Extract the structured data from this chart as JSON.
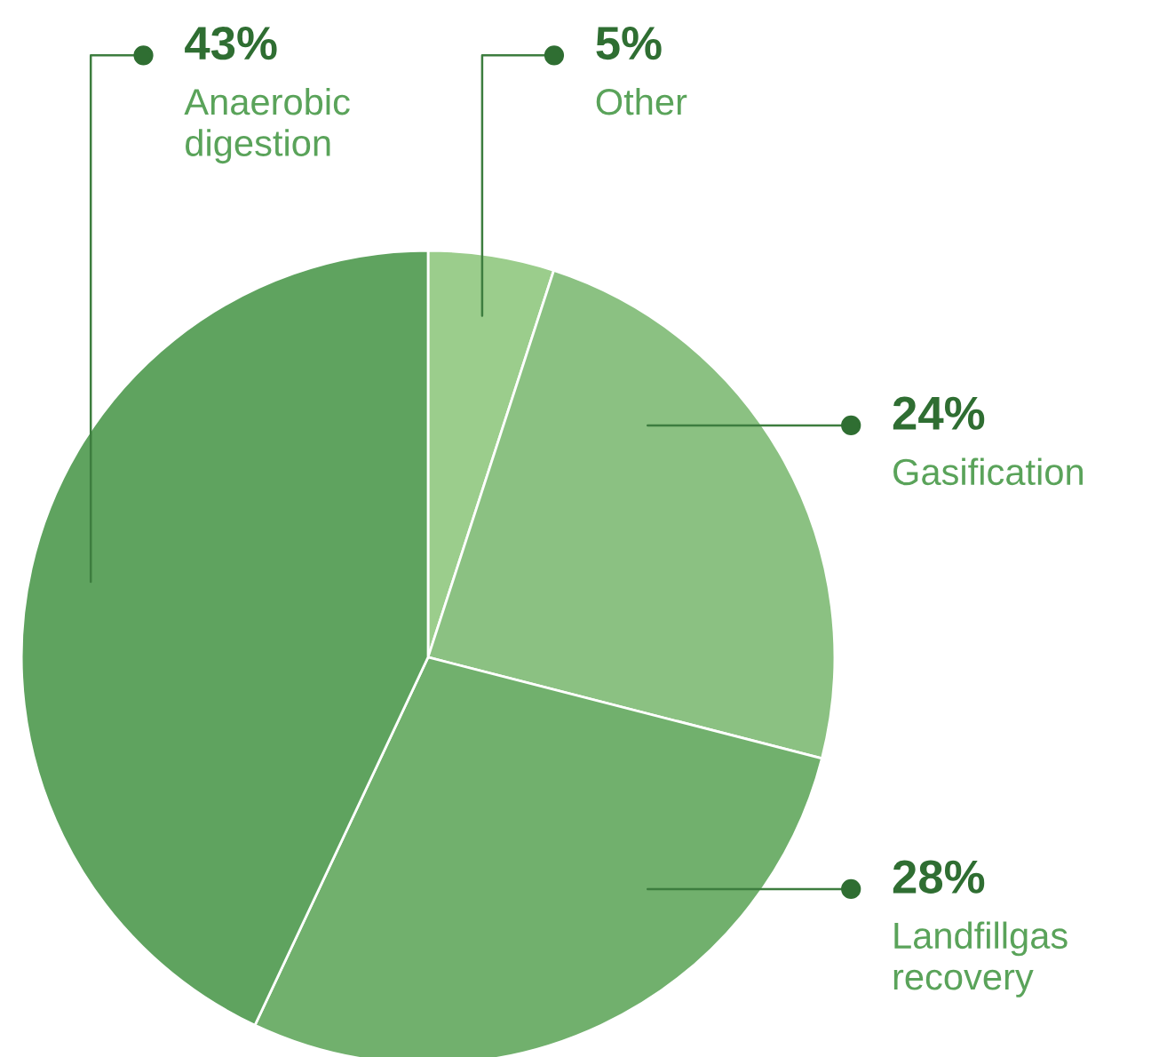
{
  "chart_data": {
    "type": "pie",
    "categories": [
      "Other",
      "Gasification",
      "Landfillgas recovery",
      "Anaerobic digestion"
    ],
    "values": [
      5,
      24,
      28,
      43
    ],
    "colors": [
      "#9bcd8c",
      "#8bc182",
      "#71b06d",
      "#5fa35f"
    ],
    "value_labels": [
      "5%",
      "24%",
      "28%",
      "43%"
    ]
  }
}
